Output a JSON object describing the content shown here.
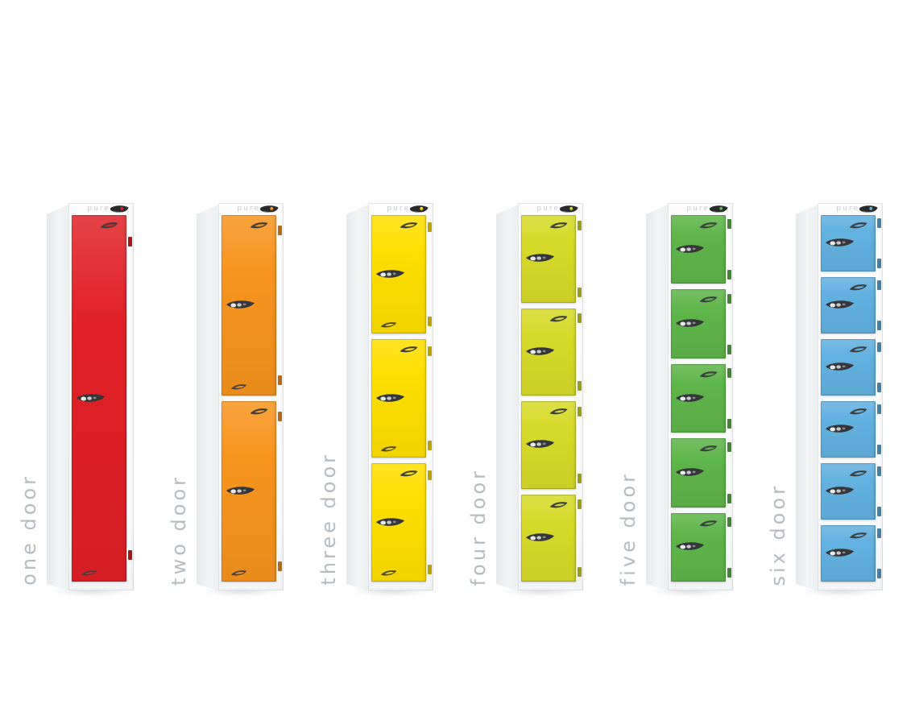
{
  "page": {
    "background": "#ffffff",
    "description": "Pure locker range product lineup, one to six door lockers"
  },
  "brand": {
    "logo_text": "pure"
  },
  "label_style": {
    "color": "#b4bbc1"
  },
  "icons": {
    "door-handle-icon": "dark recessed latch handle with polished studs",
    "pure-swoosh-icon": "dark swoosh emblem with door-colour slit",
    "cam-lock-icon": "black cam lock barrel with door-colour dot",
    "hinge-icon": "door-colour hinge tab"
  },
  "lockers": [
    {
      "id": "one-door",
      "label": "one door",
      "doors": 1,
      "color": "#e02127",
      "bottom_swoosh": true
    },
    {
      "id": "two-door",
      "label": "two door",
      "doors": 2,
      "color": "#f7941e",
      "bottom_swoosh": true
    },
    {
      "id": "three-door",
      "label": "three door",
      "doors": 3,
      "color": "#ffdf00",
      "bottom_swoosh": true
    },
    {
      "id": "four-door",
      "label": "four door",
      "doors": 4,
      "color": "#d6da28",
      "bottom_swoosh": false
    },
    {
      "id": "five-door",
      "label": "five door",
      "doors": 5,
      "color": "#5eb549",
      "bottom_swoosh": false
    },
    {
      "id": "six-door",
      "label": "six door",
      "doors": 6,
      "color": "#62b1e0",
      "bottom_swoosh": false
    }
  ]
}
